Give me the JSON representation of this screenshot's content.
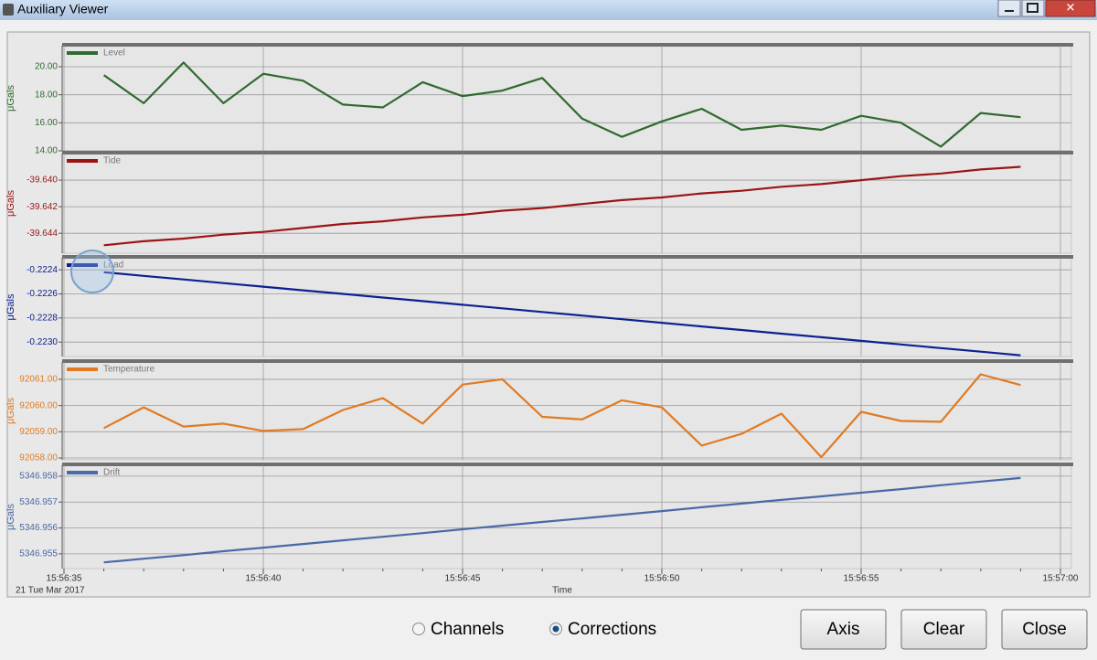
{
  "window": {
    "title": "Auxiliary Viewer"
  },
  "chart_data": [
    {
      "type": "line",
      "ylabel": "μGals",
      "ylim": [
        14,
        21.5
      ],
      "yticks": [
        {
          "value": 14,
          "label": "14.00"
        },
        {
          "value": 16,
          "label": "16.00"
        },
        {
          "value": 18,
          "label": "18.00"
        },
        {
          "value": 20,
          "label": "20.00"
        }
      ],
      "grid": true,
      "series": [
        {
          "name": "Level",
          "color": "#2f6a2f",
          "values": [
            null,
            19.4,
            17.4,
            20.3,
            17.4,
            19.5,
            19.0,
            17.3,
            17.1,
            18.9,
            17.9,
            18.3,
            19.2,
            16.3,
            15.0,
            16.1,
            17.0,
            15.5,
            15.8,
            15.5,
            16.5,
            16.0,
            14.3,
            16.7,
            16.4,
            null
          ]
        }
      ]
    },
    {
      "type": "line",
      "ylabel": "μGals",
      "ylim": [
        -39.6455,
        -39.638
      ],
      "yticks": [
        -39.644,
        -39.642,
        {
          "value": -39.64,
          "label": "-39.640"
        }
      ],
      "grid": true,
      "series": [
        {
          "name": "Tide",
          "color": "#9b1515",
          "values": [
            null,
            -39.6449,
            -39.6446,
            -39.6444,
            -39.6441,
            -39.6439,
            -39.6436,
            -39.6433,
            -39.6431,
            -39.6428,
            -39.6426,
            -39.6423,
            -39.6421,
            -39.6418,
            -39.6415,
            -39.6413,
            -39.641,
            -39.6408,
            -39.6405,
            -39.6403,
            -39.64,
            -39.6397,
            -39.6395,
            -39.6392,
            -39.639,
            null
          ]
        }
      ]
    },
    {
      "type": "line",
      "ylabel": "μGals",
      "ylim": [
        -0.22312,
        -0.2223
      ],
      "yticks": [
        {
          "value": -0.223,
          "label": "-0.2230"
        },
        -0.2228,
        -0.2226,
        -0.2224
      ],
      "grid": true,
      "series": [
        {
          "name": "Load",
          "color": "#0c2190",
          "values": [
            null,
            -0.22242,
            -0.22245,
            -0.22248,
            -0.22251,
            -0.22254,
            -0.22257,
            -0.2226,
            -0.22263,
            -0.22266,
            -0.22269,
            -0.22272,
            -0.22275,
            -0.22278,
            -0.22281,
            -0.22284,
            -0.22287,
            -0.2229,
            -0.22293,
            -0.22296,
            -0.22299,
            -0.22302,
            -0.22305,
            -0.22308,
            -0.22311,
            null
          ]
        }
      ]
    },
    {
      "type": "line",
      "ylabel": "μGals",
      "ylim": [
        92057.93,
        92061.66
      ],
      "yticks": [
        {
          "value": 92058,
          "label": "92058.00"
        },
        {
          "value": 92059,
          "label": "92059.00"
        },
        {
          "value": 92060,
          "label": "92060.00"
        },
        {
          "value": 92061,
          "label": "92061.00"
        }
      ],
      "grid": true,
      "series": [
        {
          "name": "Temperature",
          "color": "#e07b22",
          "values": [
            null,
            92059.14,
            92059.93,
            92059.2,
            92059.31,
            92059.03,
            92059.1,
            92059.83,
            92060.28,
            92059.31,
            92060.8,
            92061.0,
            92059.57,
            92059.47,
            92060.2,
            92059.93,
            92058.47,
            92058.92,
            92059.69,
            92058.03,
            92059.76,
            92059.41,
            92059.38,
            92061.19,
            92060.78,
            null
          ]
        }
      ]
    },
    {
      "type": "line",
      "ylabel": "μGals",
      "ylim": [
        5346.95443,
        5346.95842
      ],
      "yticks": [
        5346.955,
        5346.956,
        5346.957,
        5346.958
      ],
      "grid": true,
      "x_label": "Time",
      "date_label": "21 Tue Mar 2017",
      "categories": [
        "15:56:35",
        null,
        null,
        null,
        null,
        "15:56:40",
        null,
        null,
        null,
        null,
        "15:56:45",
        null,
        null,
        null,
        null,
        "15:56:50",
        null,
        null,
        null,
        null,
        "15:56:55",
        null,
        null,
        null,
        null,
        "15:57:00"
      ],
      "series": [
        {
          "name": "Drift",
          "color": "#4a69a6",
          "values": [
            null,
            5346.95467,
            5346.95481,
            5346.95495,
            5346.9551,
            5346.95524,
            5346.95538,
            5346.95552,
            5346.95566,
            5346.9558,
            5346.95595,
            5346.95609,
            5346.95623,
            5346.95637,
            5346.95651,
            5346.95665,
            5346.9568,
            5346.95694,
            5346.95708,
            5346.95722,
            5346.95736,
            5346.9575,
            5346.95765,
            5346.95779,
            5346.95793,
            null
          ]
        }
      ]
    }
  ],
  "controls": {
    "radios": [
      {
        "label": "Channels",
        "selected": false
      },
      {
        "label": "Corrections",
        "selected": true
      }
    ],
    "buttons": [
      "Axis",
      "Clear",
      "Close"
    ]
  }
}
